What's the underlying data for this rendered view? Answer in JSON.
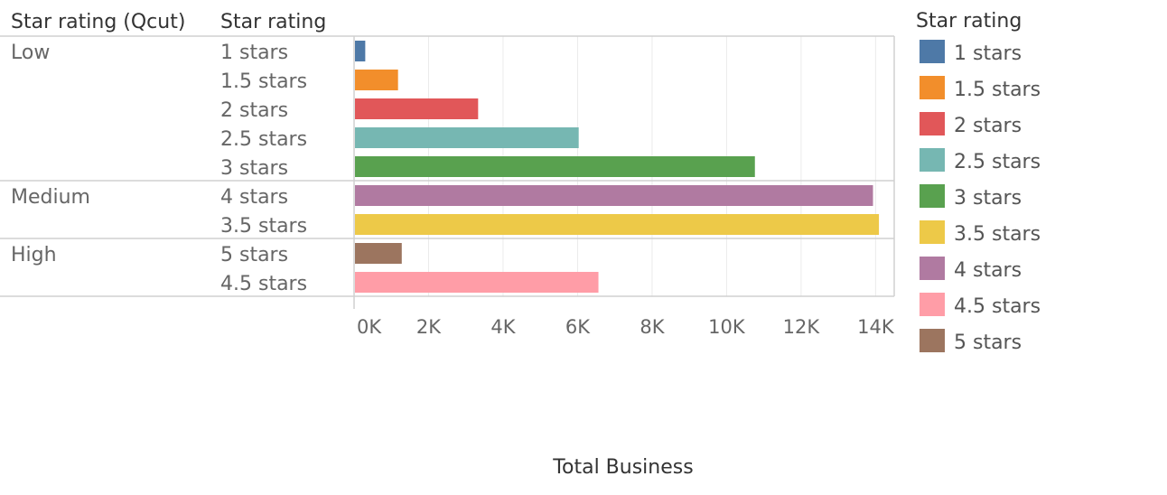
{
  "chart_data": {
    "type": "bar",
    "orientation": "horizontal",
    "row_headers": [
      "Star rating (Qcut)",
      "Star rating"
    ],
    "groups": [
      {
        "name": "Low",
        "rows": [
          "1 stars",
          "1.5 stars",
          "2 stars",
          "2.5 stars",
          "3 stars"
        ]
      },
      {
        "name": "Medium",
        "rows": [
          "4 stars",
          "3.5 stars"
        ]
      },
      {
        "name": "High",
        "rows": [
          "5 stars",
          "4.5 stars"
        ]
      }
    ],
    "categories": [
      "1 stars",
      "1.5 stars",
      "2 stars",
      "2.5 stars",
      "3 stars",
      "4 stars",
      "3.5 stars",
      "5 stars",
      "4.5 stars"
    ],
    "values": [
      300,
      1180,
      3330,
      6030,
      10760,
      13930,
      14090,
      1280,
      6560
    ],
    "xlabel": "Total Business",
    "xlim": [
      0,
      14500
    ],
    "xticks": [
      0,
      2000,
      4000,
      6000,
      8000,
      10000,
      12000,
      14000
    ],
    "xtick_labels": [
      "0K",
      "2K",
      "4K",
      "6K",
      "8K",
      "10K",
      "12K",
      "14K"
    ],
    "grid": true,
    "legend": {
      "title": "Star rating",
      "position": "right",
      "items": [
        {
          "label": "1 stars",
          "color": "#4e79a7"
        },
        {
          "label": "1.5 stars",
          "color": "#f28e2b"
        },
        {
          "label": "2 stars",
          "color": "#e15759"
        },
        {
          "label": "2.5 stars",
          "color": "#76b7b2"
        },
        {
          "label": "3 stars",
          "color": "#59a14f"
        },
        {
          "label": "3.5 stars",
          "color": "#edc948"
        },
        {
          "label": "4 stars",
          "color": "#b07aa1"
        },
        {
          "label": "4.5 stars",
          "color": "#ff9da7"
        },
        {
          "label": "5 stars",
          "color": "#9c755f"
        }
      ]
    }
  }
}
